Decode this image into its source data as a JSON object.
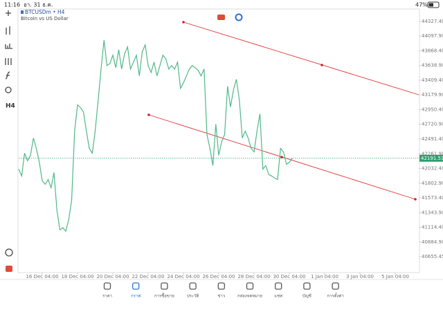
{
  "status_bar": {
    "time": "11:16",
    "date": "อา. 31 ธ.ค.",
    "battery": "47%"
  },
  "chart_data": {
    "type": "line",
    "title": "BTCUSDm • H4",
    "subtitle": "Bitcoin vs US Dollar",
    "color": "#4fb887",
    "values": [
      42022.6,
      41914.9,
      42270.3,
      42151.9,
      42238.0,
      42507.3,
      42345.7,
      42130.3,
      41839.5,
      41785.7,
      41861.1,
      41731.8,
      41968.8,
      41376.4,
      41074.9,
      41107.2,
      41053.3,
      41236.4,
      41538.0,
      42615.0,
      43024.2,
      42981.1,
      42916.5,
      42615.0,
      42345.7,
      42270.3,
      42615.0,
      43099.6,
      43584.3,
      44036.6,
      43638.1,
      43670.4,
      43799.7,
      43605.8,
      43885.8,
      43584.3,
      43821.2,
      43928.9,
      43584.3,
      43692.0,
      43799.7,
      43476.6,
      43853.5,
      43961.2,
      43638.1,
      43530.4,
      43692.0,
      43476.6,
      43638.1,
      43799.7,
      43745.8,
      43584.3,
      43638.1,
      43584.3,
      43692.0,
      43282.7,
      43368.9,
      43476.6,
      43584.3,
      43638.1,
      43605.8,
      43562.7,
      43476.6,
      43584.3,
      42561.1,
      42345.7,
      42076.5,
      42722.7,
      42238.0,
      42453.4,
      42561.1,
      43315.0,
      42991.9,
      43261.2,
      43422.7,
      43099.6,
      42507.3,
      42615.0,
      42507.3,
      42345.7,
      42291.9,
      42615.0,
      42884.2,
      42022.6,
      42076.5,
      41936.5,
      41914.9,
      41882.6,
      41861.1,
      42345.7,
      42291.9,
      42098.0,
      42130.3,
      42191.53
    ],
    "xlim": [
      0,
      136
    ],
    "xticks": [
      {
        "value": 8,
        "label": "16 Dec 04:00"
      },
      {
        "value": 20,
        "label": "18 Dec 04:00"
      },
      {
        "value": 32,
        "label": "20 Dec 04:00"
      },
      {
        "value": 44,
        "label": "22 Dec 04:00"
      },
      {
        "value": 56,
        "label": "24 Dec 04:00"
      },
      {
        "value": 68,
        "label": "26 Dec 04:00"
      },
      {
        "value": 80,
        "label": "28 Dec 04:00"
      },
      {
        "value": 92,
        "label": "30 Dec 04:00"
      },
      {
        "value": 104,
        "label": "1 Jan 04:00"
      },
      {
        "value": 116,
        "label": "3 Jan 04:00"
      },
      {
        "value": 128,
        "label": "5 Jan 04:00"
      }
    ],
    "ylim": [
      40408,
      44510
    ],
    "yticks": [
      {
        "value": 44327.4,
        "label": "44327.40"
      },
      {
        "value": 44097.9,
        "label": "44097.90"
      },
      {
        "value": 43868.4,
        "label": "43868.40"
      },
      {
        "value": 43638.9,
        "label": "43638.90"
      },
      {
        "value": 43409.4,
        "label": "43409.40"
      },
      {
        "value": 43179.9,
        "label": "43179.90"
      },
      {
        "value": 42950.4,
        "label": "42950.40"
      },
      {
        "value": 42720.9,
        "label": "42720.90"
      },
      {
        "value": 42491.4,
        "label": "42491.40"
      },
      {
        "value": 42261.9,
        "label": "42261.90"
      },
      {
        "value": 42032.4,
        "label": "42032.40"
      },
      {
        "value": 41802.9,
        "label": "41802.90"
      },
      {
        "value": 41573.4,
        "label": "41573.40"
      },
      {
        "value": 41343.9,
        "label": "41343.90"
      },
      {
        "value": 41114.4,
        "label": "41114.40"
      },
      {
        "value": 40884.9,
        "label": "40884.90"
      },
      {
        "value": 40655.45,
        "label": "40655.45"
      }
    ],
    "current_price": {
      "value": 42191.53,
      "label": "42191.53"
    }
  },
  "nav": [
    "ราคา",
    "กราฟ",
    "การซื้อขาย",
    "ประวัติ",
    "ข่าว",
    "กล่องจดหมาย",
    "แชท",
    "บัญชี",
    "การตั้งค่า"
  ],
  "toolbar": {
    "timeframe": "H4"
  }
}
